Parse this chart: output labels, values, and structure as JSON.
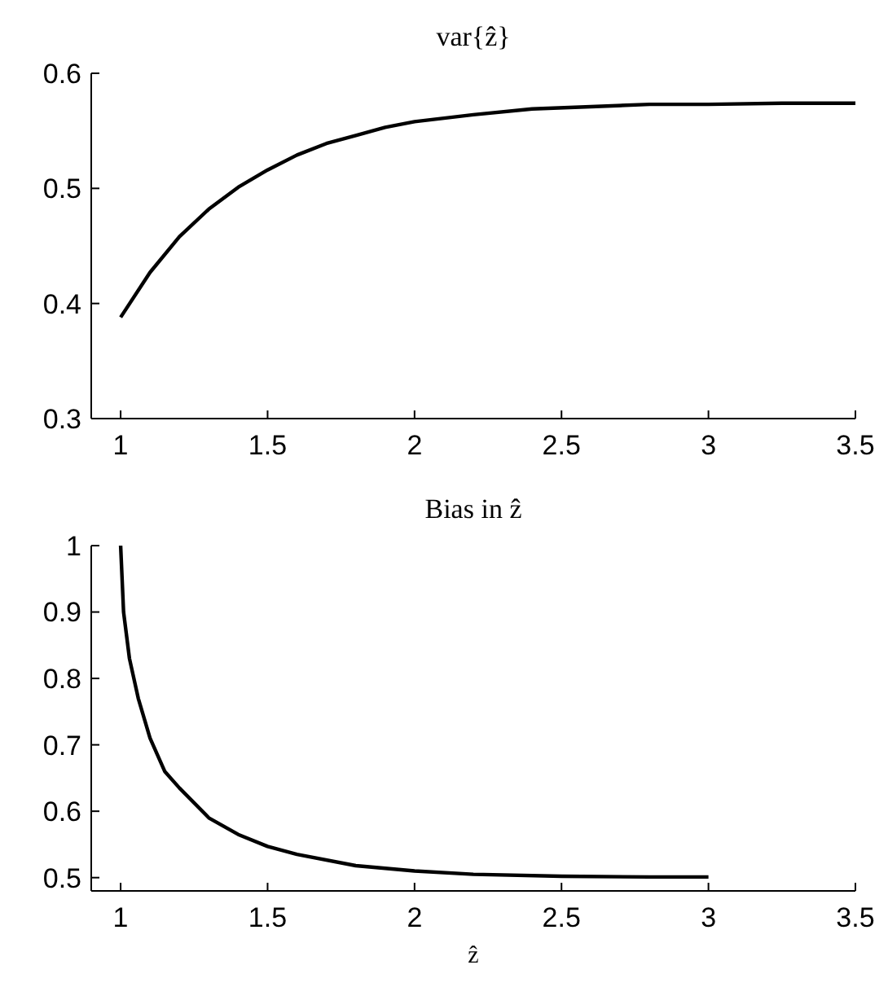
{
  "chart_data": [
    {
      "type": "line",
      "title": "var{ẑ}",
      "x": [
        1.0,
        1.1,
        1.2,
        1.3,
        1.4,
        1.5,
        1.6,
        1.7,
        1.8,
        1.9,
        2.0,
        2.2,
        2.4,
        2.6,
        2.8,
        3.0,
        3.25,
        3.5
      ],
      "series": [
        {
          "color": "#000000",
          "values": [
            0.388,
            0.427,
            0.458,
            0.482,
            0.501,
            0.516,
            0.529,
            0.539,
            0.546,
            0.553,
            0.558,
            0.564,
            0.569,
            0.571,
            0.573,
            0.573,
            0.574,
            0.574
          ]
        }
      ],
      "xlim": [
        0.9,
        3.5
      ],
      "xticks": [
        1,
        1.5,
        2,
        2.5,
        3,
        3.5
      ],
      "ylim": [
        0.3,
        0.6
      ],
      "yticks": [
        0.3,
        0.4,
        0.5,
        0.6
      ]
    },
    {
      "type": "line",
      "title": "Bias in ẑ",
      "xlabel": "ẑ",
      "x": [
        1.0,
        1.01,
        1.03,
        1.06,
        1.1,
        1.15,
        1.2,
        1.3,
        1.4,
        1.5,
        1.6,
        1.8,
        2.0,
        2.2,
        2.5,
        2.8,
        3.0
      ],
      "series": [
        {
          "color": "#000000",
          "values": [
            1.0,
            0.9,
            0.83,
            0.77,
            0.71,
            0.66,
            0.635,
            0.59,
            0.565,
            0.547,
            0.535,
            0.518,
            0.51,
            0.505,
            0.502,
            0.501,
            0.501
          ]
        }
      ],
      "xlim": [
        0.9,
        3.5
      ],
      "xticks": [
        1,
        1.5,
        2,
        2.5,
        3,
        3.5
      ],
      "ylim": [
        0.48,
        1
      ],
      "yticks": [
        0.5,
        0.6,
        0.7,
        0.8,
        0.9,
        1
      ]
    }
  ]
}
